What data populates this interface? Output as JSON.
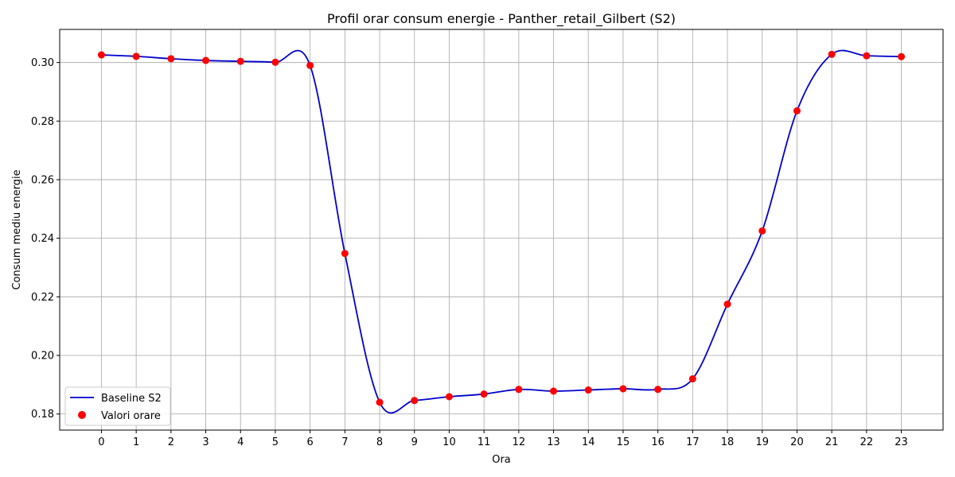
{
  "chart_data": {
    "type": "line",
    "title": "Profil orar consum energie - Panther_retail_Gilbert (S2)",
    "xlabel": "Ora",
    "ylabel": "Consum mediu energie",
    "x": [
      0,
      1,
      2,
      3,
      4,
      5,
      6,
      7,
      8,
      9,
      10,
      11,
      12,
      13,
      14,
      15,
      16,
      17,
      18,
      19,
      20,
      21,
      22,
      23
    ],
    "xlim": [
      -1.2,
      24.2
    ],
    "ylim": [
      0.1745,
      0.3113
    ],
    "yticks": [
      0.18,
      0.2,
      0.22,
      0.24,
      0.26,
      0.28,
      0.3
    ],
    "ytick_labels": [
      "0.18",
      "0.20",
      "0.22",
      "0.24",
      "0.26",
      "0.28",
      "0.30"
    ],
    "grid": true,
    "legend_position": "bottom-left",
    "series": [
      {
        "name": "Baseline S2",
        "kind": "line",
        "color": "#0000cc",
        "values": [
          0.3026,
          0.3021,
          0.3013,
          0.3007,
          0.3004,
          0.3001,
          0.299,
          0.2348,
          0.184,
          0.1846,
          0.1859,
          0.1868,
          0.1884,
          0.1878,
          0.1882,
          0.1886,
          0.1884,
          0.192,
          0.2175,
          0.2425,
          0.2835,
          0.3028,
          0.3023,
          0.302
        ]
      },
      {
        "name": "Valori orare",
        "kind": "scatter",
        "color": "#ff0000",
        "values": [
          0.3026,
          0.3021,
          0.3013,
          0.3007,
          0.3004,
          0.3001,
          0.299,
          0.2348,
          0.184,
          0.1846,
          0.1859,
          0.1868,
          0.1884,
          0.1878,
          0.1882,
          0.1886,
          0.1884,
          0.192,
          0.2175,
          0.2425,
          0.2835,
          0.3028,
          0.3023,
          0.302
        ]
      }
    ]
  }
}
